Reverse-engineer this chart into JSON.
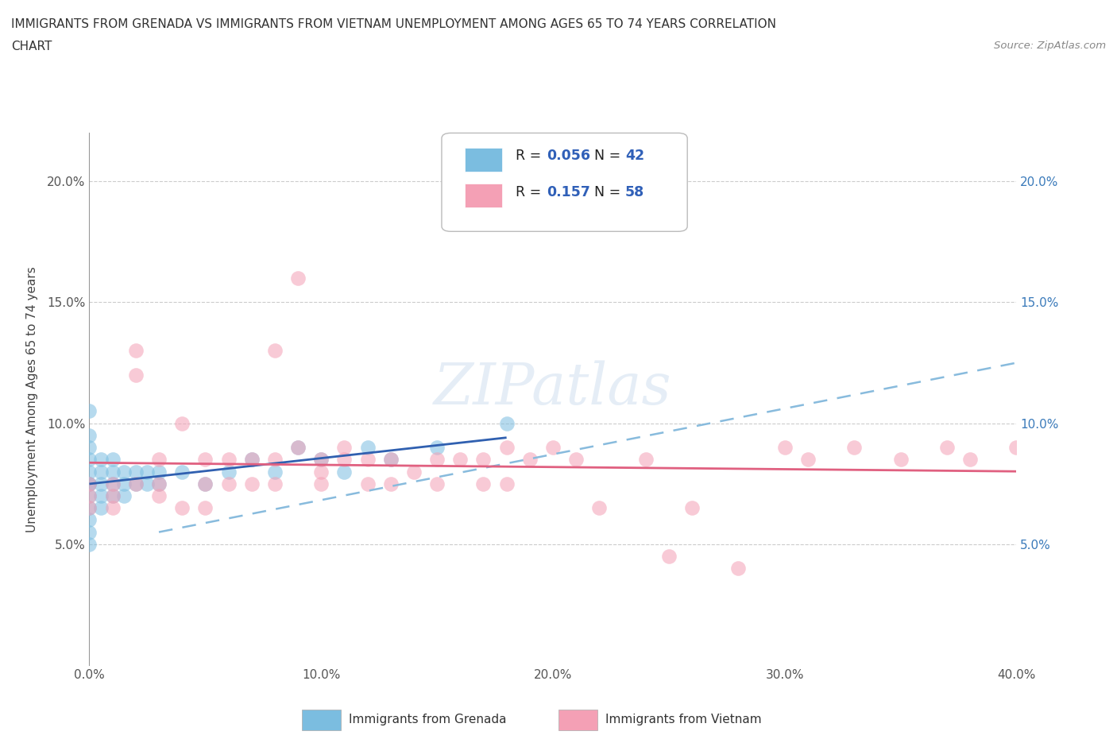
{
  "title_line1": "IMMIGRANTS FROM GRENADA VS IMMIGRANTS FROM VIETNAM UNEMPLOYMENT AMONG AGES 65 TO 74 YEARS CORRELATION",
  "title_line2": "CHART",
  "source": "Source: ZipAtlas.com",
  "ylabel": "Unemployment Among Ages 65 to 74 years",
  "xlim": [
    0.0,
    0.4
  ],
  "ylim": [
    0.0,
    0.22
  ],
  "xticks": [
    0.0,
    0.1,
    0.2,
    0.3,
    0.4
  ],
  "xticklabels": [
    "0.0%",
    "10.0%",
    "20.0%",
    "30.0%",
    "40.0%"
  ],
  "yticks_left": [
    0.0,
    0.05,
    0.1,
    0.15,
    0.2
  ],
  "yticklabels_left": [
    "",
    "5.0%",
    "10.0%",
    "15.0%",
    "20.0%"
  ],
  "yticks_right": [
    0.05,
    0.1,
    0.15,
    0.2
  ],
  "yticklabels_right": [
    "5.0%",
    "10.0%",
    "15.0%",
    "20.0%"
  ],
  "grenada_color": "#7bbde0",
  "vietnam_color": "#f4a0b5",
  "grenada_line_color": "#3060b0",
  "vietnam_line_color": "#e06080",
  "vietnam_dash_color": "#88ccee",
  "grenada_R": 0.056,
  "grenada_N": 42,
  "vietnam_R": 0.157,
  "vietnam_N": 58,
  "watermark": "ZIPatlas",
  "legend_label_grenada": "Immigrants from Grenada",
  "legend_label_vietnam": "Immigrants from Vietnam",
  "grenada_x": [
    0.0,
    0.0,
    0.0,
    0.0,
    0.0,
    0.0,
    0.0,
    0.0,
    0.0,
    0.0,
    0.0,
    0.0,
    0.005,
    0.005,
    0.005,
    0.005,
    0.005,
    0.01,
    0.01,
    0.01,
    0.01,
    0.015,
    0.015,
    0.015,
    0.02,
    0.02,
    0.025,
    0.025,
    0.03,
    0.03,
    0.04,
    0.05,
    0.06,
    0.07,
    0.08,
    0.09,
    0.1,
    0.11,
    0.12,
    0.13,
    0.15,
    0.18
  ],
  "grenada_y": [
    0.105,
    0.095,
    0.09,
    0.085,
    0.08,
    0.075,
    0.075,
    0.07,
    0.065,
    0.06,
    0.055,
    0.05,
    0.085,
    0.08,
    0.075,
    0.07,
    0.065,
    0.085,
    0.08,
    0.075,
    0.07,
    0.08,
    0.075,
    0.07,
    0.08,
    0.075,
    0.08,
    0.075,
    0.08,
    0.075,
    0.08,
    0.075,
    0.08,
    0.085,
    0.08,
    0.09,
    0.085,
    0.08,
    0.09,
    0.085,
    0.09,
    0.1
  ],
  "vietnam_x": [
    0.0,
    0.0,
    0.0,
    0.01,
    0.01,
    0.01,
    0.02,
    0.02,
    0.02,
    0.03,
    0.03,
    0.03,
    0.04,
    0.04,
    0.05,
    0.05,
    0.05,
    0.06,
    0.06,
    0.07,
    0.07,
    0.08,
    0.08,
    0.08,
    0.09,
    0.09,
    0.1,
    0.1,
    0.1,
    0.11,
    0.11,
    0.12,
    0.12,
    0.13,
    0.13,
    0.14,
    0.15,
    0.15,
    0.16,
    0.17,
    0.17,
    0.18,
    0.18,
    0.19,
    0.2,
    0.21,
    0.22,
    0.24,
    0.25,
    0.26,
    0.28,
    0.3,
    0.31,
    0.33,
    0.35,
    0.37,
    0.38,
    0.4
  ],
  "vietnam_y": [
    0.075,
    0.07,
    0.065,
    0.075,
    0.07,
    0.065,
    0.13,
    0.12,
    0.075,
    0.085,
    0.075,
    0.07,
    0.1,
    0.065,
    0.085,
    0.075,
    0.065,
    0.085,
    0.075,
    0.085,
    0.075,
    0.13,
    0.085,
    0.075,
    0.16,
    0.09,
    0.085,
    0.08,
    0.075,
    0.09,
    0.085,
    0.085,
    0.075,
    0.085,
    0.075,
    0.08,
    0.085,
    0.075,
    0.085,
    0.085,
    0.075,
    0.09,
    0.075,
    0.085,
    0.09,
    0.085,
    0.065,
    0.085,
    0.045,
    0.065,
    0.04,
    0.09,
    0.085,
    0.09,
    0.085,
    0.09,
    0.085,
    0.09
  ]
}
